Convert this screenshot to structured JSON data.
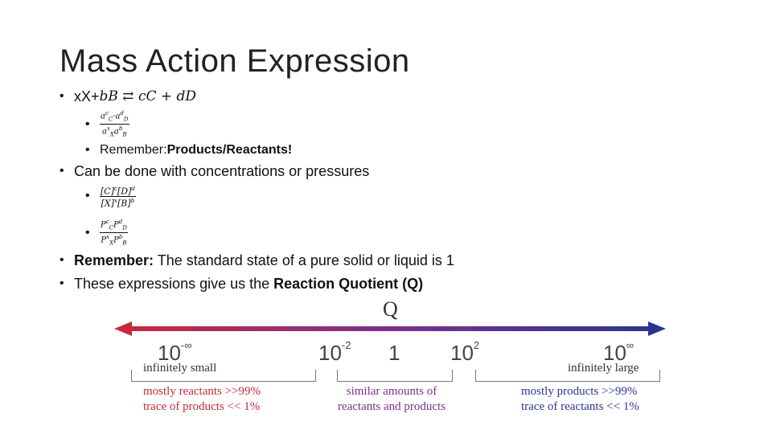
{
  "slide": {
    "title": "Mass Action Expression",
    "bullets": {
      "b1_prefix": "xX+",
      "b1_math": "bB ⇄ cC + dD",
      "sub_frac1_num": "a",
      "sub_frac1_den": "a",
      "remember1_label": "Remember: ",
      "remember1_bold": "Products/Reactants!",
      "b2": "Can be done with concentrations or pressures",
      "b3_label": "Remember:",
      "b3_text": " The standard state of a pure solid or liquid is 1",
      "b4_text": "These expressions give us the ",
      "b4_bold": "Reaction Quotient (Q)"
    }
  },
  "scale": {
    "title": "Q",
    "left_color": "#c8283a",
    "mid_color": "#7b2f8e",
    "right_color": "#2b3590",
    "marks": [
      {
        "base": "10",
        "exp": "-∞"
      },
      {
        "base": "10",
        "exp": "-2"
      },
      {
        "base": "1",
        "exp": ""
      },
      {
        "base": "10",
        "exp": "2"
      },
      {
        "base": "10",
        "exp": "∞"
      }
    ],
    "left_label": "infinitely small",
    "right_label": "infinitely large",
    "left_desc": [
      "mostly reactants >>99%",
      "trace of products << 1%"
    ],
    "mid_desc": [
      "similar amounts of",
      "reactants and products"
    ],
    "right_desc": [
      "mostly products >>99%",
      "trace of reactants << 1%"
    ]
  }
}
